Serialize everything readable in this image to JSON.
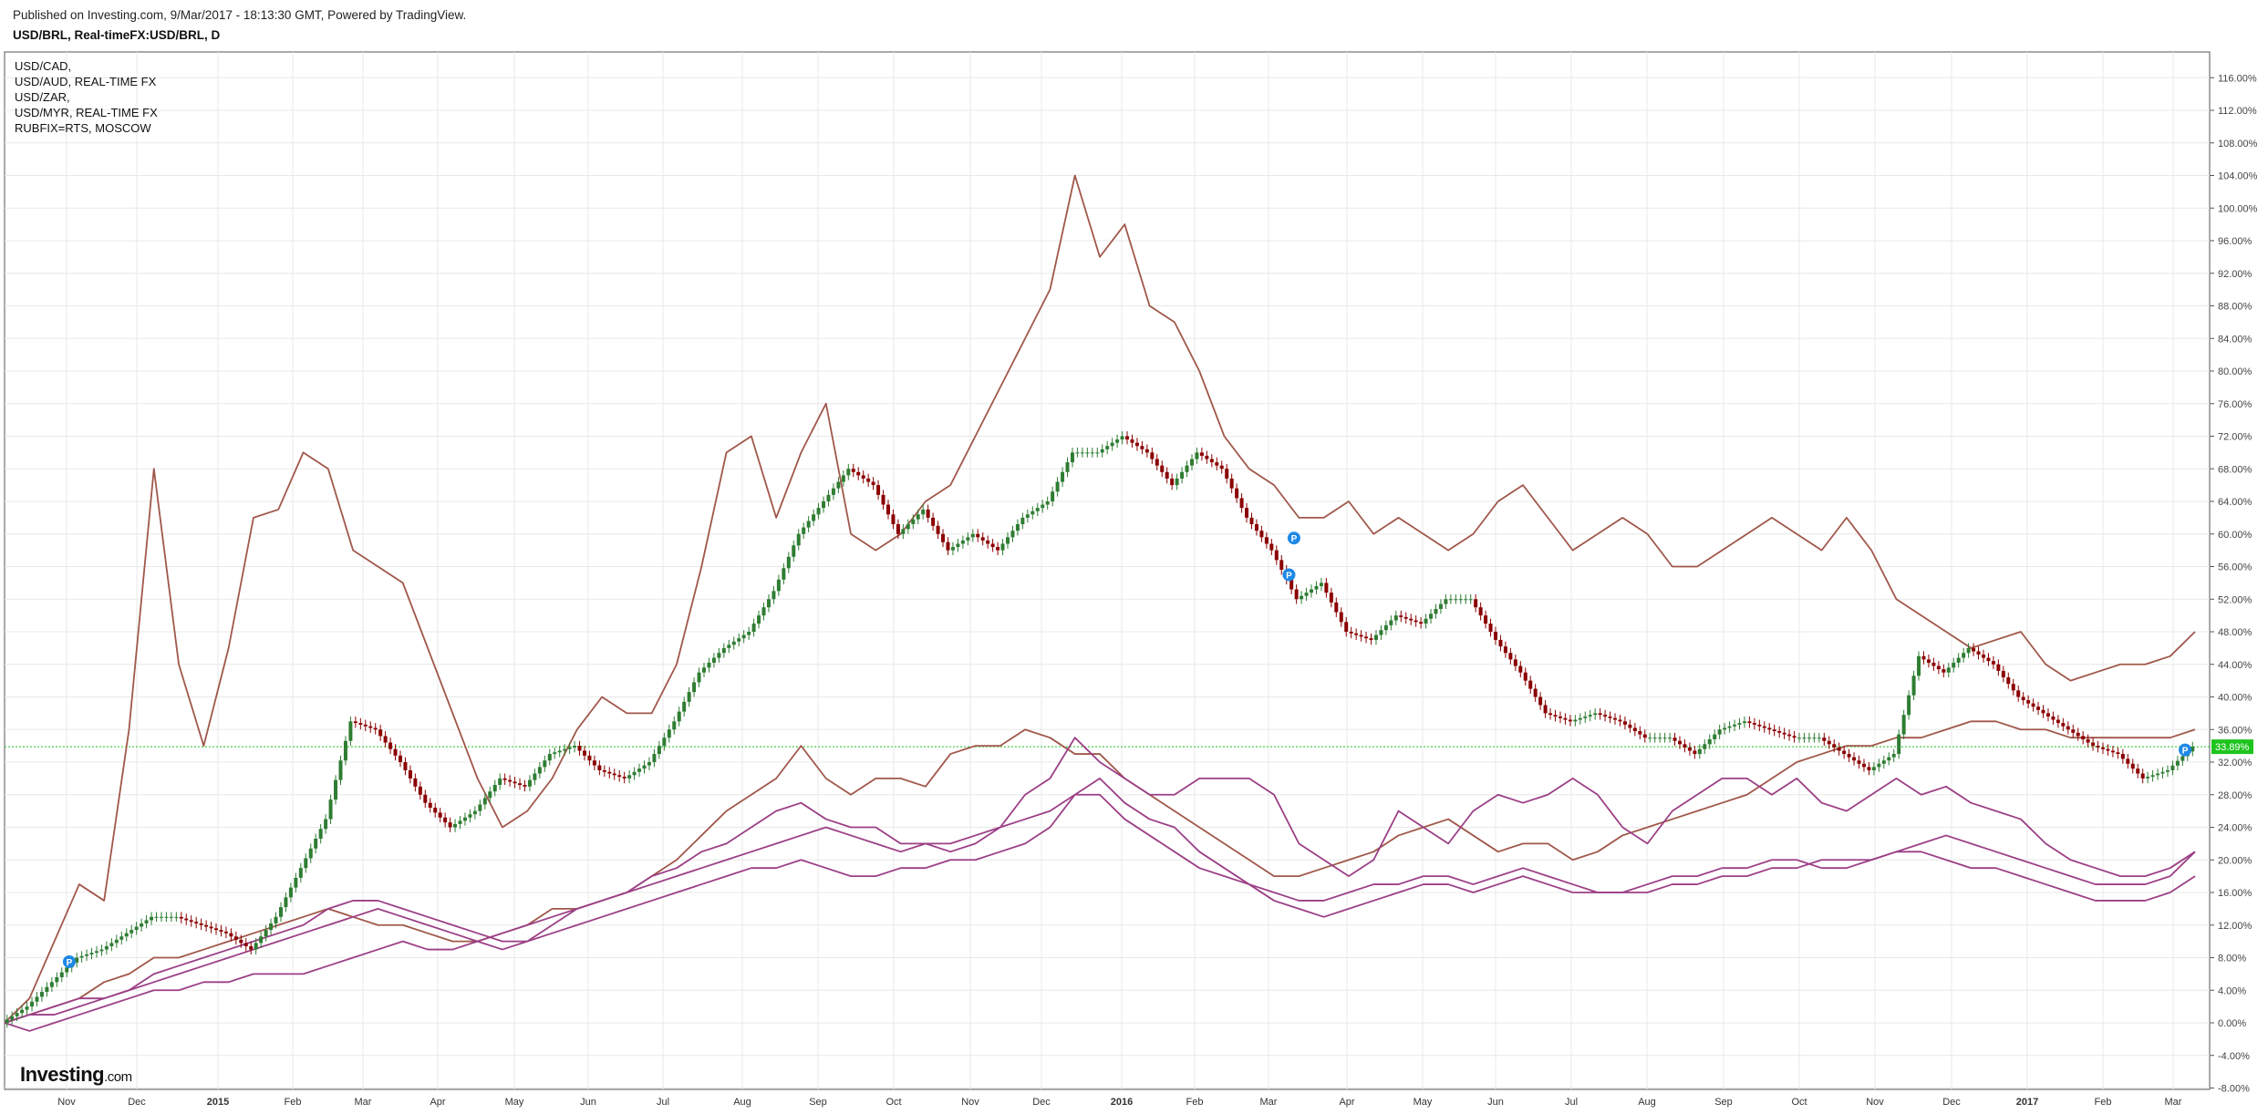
{
  "header": {
    "published": "Published on Investing.com, 9/Mar/2017 - 18:13:30 GMT, Powered by TradingView.",
    "symbol": "USD/BRL, Real-timeFX:USD/BRL, D"
  },
  "legend": [
    "USD/CAD,",
    "USD/AUD, REAL-TIME FX",
    "USD/ZAR,",
    "USD/MYR, REAL-TIME FX",
    "RUBFIX=RTS, MOSCOW"
  ],
  "logo": {
    "main": "Investing",
    "suffix": ".com"
  },
  "colors": {
    "up": "#2e7d32",
    "down": "#8b0000",
    "rub": "#a0574a",
    "series_brown": "#a0574a",
    "series_purple": "#9b3f86",
    "last_price_bg": "#1ec41e",
    "marker": "#1e88e5",
    "grid": "#e8e8e8"
  },
  "chart_data": {
    "type": "line",
    "y_unit": "% change",
    "ylim": [
      -8,
      118
    ],
    "y_ticks": [
      "116.00%",
      "112.00%",
      "108.00%",
      "104.00%",
      "100.00%",
      "96.00%",
      "92.00%",
      "88.00%",
      "84.00%",
      "80.00%",
      "76.00%",
      "72.00%",
      "68.00%",
      "64.00%",
      "60.00%",
      "56.00%",
      "52.00%",
      "48.00%",
      "44.00%",
      "40.00%",
      "36.00%",
      "32.00%",
      "28.00%",
      "24.00%",
      "20.00%",
      "16.00%",
      "12.00%",
      "8.00%",
      "4.00%",
      "0.00%",
      "-4.00%",
      "-8.00%"
    ],
    "x_ticks": [
      "Nov",
      "Dec",
      "2015",
      "Feb",
      "Mar",
      "Apr",
      "May",
      "Jun",
      "Jul",
      "Aug",
      "Sep",
      "Oct",
      "Nov",
      "Dec",
      "2016",
      "Feb",
      "Mar",
      "Apr",
      "May",
      "Jun",
      "Jul",
      "Aug",
      "Sep",
      "Oct",
      "Nov",
      "Dec",
      "2017",
      "Feb",
      "Mar"
    ],
    "bold_x_ticks": [
      "2015",
      "2016",
      "2017"
    ],
    "last_value_label": "33.89%",
    "last_value": 33.89,
    "grid": true,
    "series": [
      {
        "role": "price",
        "style": "candles",
        "x": [
          0,
          1,
          2,
          3,
          4,
          5,
          6,
          7,
          8,
          9,
          10,
          11,
          12,
          13,
          14,
          15,
          16,
          17,
          18,
          19,
          20,
          21,
          22,
          23,
          24,
          25,
          26,
          27,
          28,
          29,
          30,
          31,
          32,
          33,
          34,
          35,
          36,
          37,
          38,
          39,
          40,
          41,
          42,
          43,
          44,
          45,
          46,
          47,
          48,
          49,
          50,
          51,
          52,
          53,
          54,
          55,
          56,
          57,
          58,
          59,
          60,
          61,
          62,
          63,
          64,
          65,
          66,
          67,
          68,
          69,
          70,
          71,
          72,
          73,
          74,
          75,
          76,
          77,
          78,
          79,
          80,
          81,
          82,
          83,
          84,
          85,
          86,
          87,
          88
        ],
        "y": [
          0,
          2,
          5,
          8,
          9,
          11,
          13,
          13,
          12,
          11,
          9,
          13,
          19,
          25,
          37,
          36,
          32,
          27,
          24,
          26,
          30,
          29,
          33,
          34,
          31,
          30,
          32,
          37,
          43,
          46,
          48,
          53,
          60,
          64,
          68,
          66,
          60,
          63,
          58,
          60,
          58,
          62,
          64,
          70,
          70,
          72,
          70,
          66,
          70,
          68,
          62,
          58,
          52,
          54,
          48,
          47,
          50,
          49,
          52,
          52,
          47,
          43,
          38,
          37,
          38,
          37,
          35,
          35,
          33,
          36,
          37,
          36,
          35,
          35,
          33,
          31,
          33,
          45,
          43,
          46,
          44,
          40,
          38,
          36,
          34,
          33,
          30,
          31,
          33.89
        ]
      },
      {
        "role": "RUBFIX",
        "style": "line",
        "color_key": "rub",
        "x": [
          0,
          1,
          2,
          3,
          4,
          5,
          6,
          7,
          8,
          9,
          10,
          11,
          12,
          13,
          14,
          15,
          16,
          17,
          18,
          19,
          20,
          21,
          22,
          23,
          24,
          25,
          26,
          27,
          28,
          29,
          30,
          31,
          32,
          33,
          34,
          35,
          36,
          37,
          38,
          39,
          40,
          41,
          42,
          43,
          44,
          45,
          46,
          47,
          48,
          49,
          50,
          51,
          52,
          53,
          54,
          55,
          56,
          57,
          58,
          59,
          60,
          61,
          62,
          63,
          64,
          65,
          66,
          67,
          68,
          69,
          70,
          71,
          72,
          73,
          74,
          75,
          76,
          77,
          78,
          79,
          80,
          81,
          82,
          83,
          84,
          85,
          86,
          87,
          88
        ],
        "y": [
          0,
          3,
          10,
          17,
          15,
          36,
          68,
          44,
          34,
          46,
          62,
          63,
          70,
          68,
          58,
          56,
          54,
          46,
          38,
          30,
          24,
          26,
          30,
          36,
          40,
          38,
          38,
          44,
          56,
          70,
          72,
          62,
          70,
          76,
          60,
          58,
          60,
          64,
          66,
          72,
          78,
          84,
          90,
          104,
          94,
          98,
          88,
          86,
          80,
          72,
          68,
          66,
          62,
          62,
          64,
          60,
          62,
          60,
          58,
          60,
          64,
          66,
          62,
          58,
          60,
          62,
          60,
          56,
          56,
          58,
          60,
          62,
          60,
          58,
          62,
          58,
          52,
          50,
          48,
          46,
          47,
          48,
          44,
          42,
          43,
          44,
          44,
          45,
          48
        ]
      },
      {
        "role": "USD/ZAR",
        "style": "line",
        "color_key": "series_brown",
        "x": [
          0,
          1,
          2,
          3,
          4,
          5,
          6,
          7,
          8,
          9,
          10,
          11,
          12,
          13,
          14,
          15,
          16,
          17,
          18,
          19,
          20,
          21,
          22,
          23,
          24,
          25,
          26,
          27,
          28,
          29,
          30,
          31,
          32,
          33,
          34,
          35,
          36,
          37,
          38,
          39,
          40,
          41,
          42,
          43,
          44,
          45,
          46,
          47,
          48,
          49,
          50,
          51,
          52,
          53,
          54,
          55,
          56,
          57,
          58,
          59,
          60,
          61,
          62,
          63,
          64,
          65,
          66,
          67,
          68,
          69,
          70,
          71,
          72,
          73,
          74,
          75,
          76,
          77,
          78,
          79,
          80,
          81,
          82,
          83,
          84,
          85,
          86,
          87,
          88
        ],
        "y": [
          0,
          1,
          2,
          3,
          5,
          6,
          8,
          8,
          9,
          10,
          11,
          12,
          13,
          14,
          13,
          12,
          12,
          11,
          10,
          10,
          11,
          12,
          14,
          14,
          15,
          16,
          18,
          20,
          23,
          26,
          28,
          30,
          34,
          30,
          28,
          30,
          30,
          29,
          33,
          34,
          34,
          36,
          35,
          33,
          33,
          30,
          28,
          26,
          24,
          22,
          20,
          18,
          18,
          19,
          20,
          21,
          23,
          24,
          25,
          23,
          21,
          22,
          22,
          20,
          21,
          23,
          24,
          25,
          26,
          27,
          28,
          30,
          32,
          33,
          34,
          34,
          35,
          35,
          36,
          37,
          37,
          36,
          36,
          35,
          35,
          35,
          35,
          35,
          36
        ]
      },
      {
        "role": "USD/MYR",
        "style": "line",
        "color_key": "series_purple",
        "x": [
          0,
          1,
          2,
          3,
          4,
          5,
          6,
          7,
          8,
          9,
          10,
          11,
          12,
          13,
          14,
          15,
          16,
          17,
          18,
          19,
          20,
          21,
          22,
          23,
          24,
          25,
          26,
          27,
          28,
          29,
          30,
          31,
          32,
          33,
          34,
          35,
          36,
          37,
          38,
          39,
          40,
          41,
          42,
          43,
          44,
          45,
          46,
          47,
          48,
          49,
          50,
          51,
          52,
          53,
          54,
          55,
          56,
          57,
          58,
          59,
          60,
          61,
          62,
          63,
          64,
          65,
          66,
          67,
          68,
          69,
          70,
          71,
          72,
          73,
          74,
          75,
          76,
          77,
          78,
          79,
          80,
          81,
          82,
          83,
          84,
          85,
          86,
          87,
          88
        ],
        "y": [
          0,
          -1,
          0,
          1,
          2,
          3,
          4,
          4,
          5,
          5,
          6,
          6,
          6,
          7,
          8,
          9,
          10,
          9,
          9,
          10,
          11,
          12,
          13,
          14,
          15,
          16,
          17,
          18,
          19,
          20,
          21,
          22,
          23,
          24,
          23,
          22,
          21,
          22,
          22,
          23,
          24,
          28,
          30,
          35,
          32,
          30,
          28,
          28,
          30,
          30,
          30,
          28,
          22,
          20,
          18,
          20,
          26,
          24,
          22,
          26,
          28,
          27,
          28,
          30,
          28,
          24,
          22,
          26,
          28,
          30,
          30,
          28,
          30,
          27,
          26,
          28,
          30,
          28,
          29,
          27,
          26,
          25,
          22,
          20,
          19,
          18,
          18,
          19,
          21
        ]
      },
      {
        "role": "USD/AUD",
        "style": "line",
        "color_key": "series_purple",
        "x": [
          0,
          1,
          2,
          3,
          4,
          5,
          6,
          7,
          8,
          9,
          10,
          11,
          12,
          13,
          14,
          15,
          16,
          17,
          18,
          19,
          20,
          21,
          22,
          23,
          24,
          25,
          26,
          27,
          28,
          29,
          30,
          31,
          32,
          33,
          34,
          35,
          36,
          37,
          38,
          39,
          40,
          41,
          42,
          43,
          44,
          45,
          46,
          47,
          48,
          49,
          50,
          51,
          52,
          53,
          54,
          55,
          56,
          57,
          58,
          59,
          60,
          61,
          62,
          63,
          64,
          65,
          66,
          67,
          68,
          69,
          70,
          71,
          72,
          73,
          74,
          75,
          76,
          77,
          78,
          79,
          80,
          81,
          82,
          83,
          84,
          85,
          86,
          87,
          88
        ],
        "y": [
          0,
          1,
          2,
          3,
          3,
          4,
          6,
          7,
          8,
          9,
          10,
          11,
          12,
          14,
          15,
          15,
          14,
          13,
          12,
          11,
          10,
          10,
          12,
          14,
          15,
          16,
          18,
          19,
          21,
          22,
          24,
          26,
          27,
          25,
          24,
          24,
          22,
          22,
          21,
          22,
          24,
          25,
          26,
          28,
          30,
          27,
          25,
          24,
          21,
          19,
          17,
          16,
          15,
          15,
          16,
          17,
          17,
          18,
          18,
          17,
          18,
          19,
          18,
          17,
          16,
          16,
          17,
          18,
          18,
          19,
          19,
          20,
          20,
          19,
          19,
          20,
          21,
          22,
          23,
          22,
          21,
          20,
          19,
          18,
          17,
          17,
          17,
          18,
          21
        ]
      },
      {
        "role": "USD/CAD",
        "style": "line",
        "color_key": "series_purple",
        "x": [
          0,
          1,
          2,
          3,
          4,
          5,
          6,
          7,
          8,
          9,
          10,
          11,
          12,
          13,
          14,
          15,
          16,
          17,
          18,
          19,
          20,
          21,
          22,
          23,
          24,
          25,
          26,
          27,
          28,
          29,
          30,
          31,
          32,
          33,
          34,
          35,
          36,
          37,
          38,
          39,
          40,
          41,
          42,
          43,
          44,
          45,
          46,
          47,
          48,
          49,
          50,
          51,
          52,
          53,
          54,
          55,
          56,
          57,
          58,
          59,
          60,
          61,
          62,
          63,
          64,
          65,
          66,
          67,
          68,
          69,
          70,
          71,
          72,
          73,
          74,
          75,
          76,
          77,
          78,
          79,
          80,
          81,
          82,
          83,
          84,
          85,
          86,
          87,
          88
        ],
        "y": [
          0,
          1,
          1,
          2,
          3,
          4,
          5,
          6,
          7,
          8,
          9,
          10,
          11,
          12,
          13,
          14,
          13,
          12,
          11,
          10,
          9,
          10,
          11,
          12,
          13,
          14,
          15,
          16,
          17,
          18,
          19,
          19,
          20,
          19,
          18,
          18,
          19,
          19,
          20,
          20,
          21,
          22,
          24,
          28,
          28,
          25,
          23,
          21,
          19,
          18,
          17,
          15,
          14,
          13,
          14,
          15,
          16,
          17,
          17,
          16,
          17,
          18,
          17,
          16,
          16,
          16,
          16,
          17,
          17,
          18,
          18,
          19,
          19,
          20,
          20,
          20,
          21,
          21,
          20,
          19,
          19,
          18,
          17,
          16,
          15,
          15,
          15,
          16,
          18
        ]
      }
    ],
    "markers": [
      {
        "x": 2.6,
        "y": 7.5,
        "label": "P"
      },
      {
        "x": 51.8,
        "y": 59.5,
        "label": "P"
      },
      {
        "x": 51.6,
        "y": 55.0,
        "label": "P"
      },
      {
        "x": 87.6,
        "y": 33.5,
        "label": "P"
      }
    ]
  }
}
